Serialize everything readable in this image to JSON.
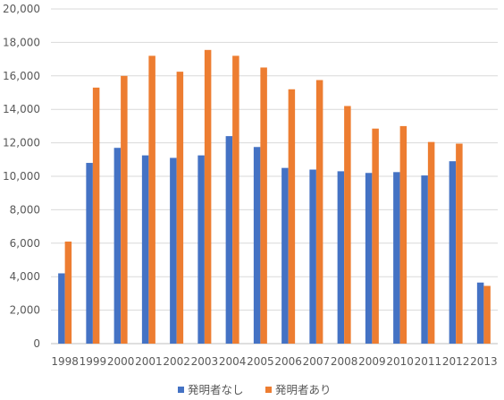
{
  "chart_data": {
    "type": "bar",
    "categories": [
      "1998",
      "1999",
      "2000",
      "2001",
      "2002",
      "2003",
      "2004",
      "2005",
      "2006",
      "2007",
      "2008",
      "2009",
      "2010",
      "2011",
      "2012",
      "2013"
    ],
    "series": [
      {
        "name": "発明者なし",
        "color": "#4472C4",
        "values": [
          4200,
          10800,
          11700,
          11250,
          11100,
          11250,
          12400,
          11750,
          10500,
          10400,
          10300,
          10200,
          10250,
          10050,
          10900,
          3650
        ]
      },
      {
        "name": "発明者あり",
        "color": "#ED7D31",
        "values": [
          6100,
          15300,
          16000,
          17200,
          16250,
          17550,
          17200,
          16500,
          15200,
          15750,
          14200,
          12850,
          13000,
          12050,
          11950,
          3450
        ]
      }
    ],
    "ylim": [
      0,
      20000
    ],
    "y_ticks": [
      "0",
      "2,000",
      "4,000",
      "6,000",
      "8,000",
      "10,000",
      "12,000",
      "14,000",
      "16,000",
      "18,000",
      "20,000"
    ],
    "y_tick_values": [
      0,
      2000,
      4000,
      6000,
      8000,
      10000,
      12000,
      14000,
      16000,
      18000,
      20000
    ],
    "grid": true,
    "legend_position": "bottom"
  }
}
